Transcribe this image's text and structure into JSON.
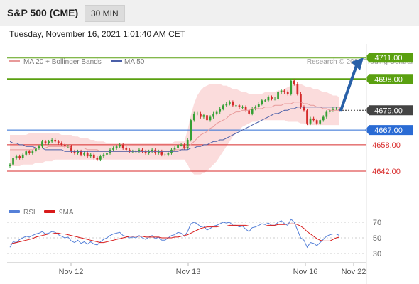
{
  "header": {
    "title": "S&P 500 (CME)",
    "timeframe": "30 MIN"
  },
  "datetime": "Tuesday, November 16, 2021 1:01:40 AM CET",
  "legend": {
    "bollinger": "MA 20 + Bollinger Bands",
    "ma50": "MA 50",
    "credit": "Research © 2021 Trading Central",
    "rsi": "RSI",
    "rsi_ma": "9MA"
  },
  "colors": {
    "bull": "#35a035",
    "bear": "#d42a2a",
    "bollinger_fill": "#fbdcdc",
    "ma20": "#e89a9a",
    "ma50": "#4a5fa8",
    "resistance": "#5aa010",
    "support": "#d82a2a",
    "pivot": "#2a6bd4",
    "current": "#444444",
    "arrow": "#2860a8",
    "rsi": "#5580d8",
    "rsi_ma": "#d81a1a"
  },
  "chart_data": [
    {
      "type": "candlestick",
      "xlabels": [
        "Nov 12",
        "Nov 13",
        "Nov 16",
        "Nov 22"
      ],
      "ylim": [
        4626,
        4718
      ],
      "levels": [
        {
          "label": "4711.00",
          "value": 4711,
          "kind": "resistance"
        },
        {
          "label": "4698.00",
          "value": 4698,
          "kind": "resistance"
        },
        {
          "label": "4679.00",
          "value": 4679,
          "kind": "current"
        },
        {
          "label": "4667.00",
          "value": 4667,
          "kind": "pivot"
        },
        {
          "label": "4658.00",
          "value": 4658,
          "kind": "support"
        },
        {
          "label": "4642.00",
          "value": 4642,
          "kind": "support"
        }
      ],
      "close": [
        4646,
        4650,
        4651,
        4650,
        4652,
        4654,
        4653,
        4654,
        4656,
        4657,
        4660,
        4659,
        4660,
        4661,
        4660,
        4659,
        4658,
        4657,
        4657,
        4654,
        4653,
        4654,
        4652,
        4653,
        4651,
        4652,
        4650,
        4649,
        4651,
        4652,
        4653,
        4655,
        4656,
        4657,
        4658,
        4656,
        4655,
        4654,
        4654,
        4654,
        4655,
        4654,
        4653,
        4654,
        4655,
        4653,
        4654,
        4652,
        4652,
        4653,
        4655,
        4656,
        4658,
        4658,
        4656,
        4661,
        4673,
        4677,
        4677,
        4675,
        4676,
        4673,
        4675,
        4677,
        4678,
        4680,
        4682,
        4683,
        4684,
        4682,
        4682,
        4681,
        4681,
        4679,
        4677,
        4680,
        4681,
        4683,
        4685,
        4685,
        4687,
        4686,
        4686,
        4690,
        4691,
        4690,
        4689,
        4697,
        4695,
        4689,
        4681,
        4679,
        4671,
        4674,
        4673,
        4671,
        4673,
        4675,
        4678,
        4679,
        4680,
        4680,
        4679
      ],
      "ma20": [
        4655,
        4655,
        4655,
        4655,
        4655,
        4655,
        4655,
        4655,
        4656,
        4656,
        4656,
        4656,
        4657,
        4657,
        4657,
        4657,
        4657,
        4657,
        4657,
        4656,
        4656,
        4656,
        4656,
        4656,
        4655,
        4655,
        4655,
        4655,
        4654,
        4654,
        4654,
        4654,
        4654,
        4654,
        4654,
        4654,
        4654,
        4654,
        4654,
        4654,
        4654,
        4654,
        4654,
        4654,
        4654,
        4654,
        4654,
        4654,
        4654,
        4654,
        4654,
        4655,
        4655,
        4655,
        4656,
        4657,
        4658,
        4660,
        4662,
        4664,
        4665,
        4666,
        4668,
        4669,
        4671,
        4672,
        4673,
        4674,
        4676,
        4677,
        4678,
        4678,
        4679,
        4679,
        4679,
        4680,
        4680,
        4680,
        4680,
        4681,
        4681,
        4681,
        4682,
        4682,
        4682,
        4683,
        4683,
        4683,
        4684,
        4684,
        4684,
        4683,
        4683,
        4682,
        4682,
        4681,
        4681,
        4680,
        4680,
        4679,
        4679,
        4679,
        4679
      ],
      "bb_upper": [
        4664,
        4664,
        4664,
        4664,
        4664,
        4664,
        4665,
        4665,
        4665,
        4665,
        4665,
        4665,
        4665,
        4665,
        4665,
        4665,
        4664,
        4664,
        4664,
        4664,
        4663,
        4663,
        4662,
        4662,
        4662,
        4661,
        4661,
        4660,
        4660,
        4660,
        4659,
        4659,
        4659,
        4659,
        4659,
        4659,
        4659,
        4659,
        4659,
        4659,
        4659,
        4659,
        4659,
        4659,
        4659,
        4659,
        4659,
        4659,
        4659,
        4659,
        4659,
        4660,
        4660,
        4660,
        4660,
        4667,
        4676,
        4683,
        4688,
        4691,
        4693,
        4694,
        4695,
        4695,
        4695,
        4695,
        4694,
        4694,
        4693,
        4692,
        4692,
        4691,
        4690,
        4690,
        4689,
        4689,
        4689,
        4689,
        4689,
        4690,
        4690,
        4690,
        4690,
        4691,
        4691,
        4692,
        4693,
        4694,
        4695,
        4695,
        4695,
        4694,
        4693,
        4693,
        4692,
        4692,
        4691,
        4690,
        4690,
        4689,
        4688,
        4688,
        4687
      ],
      "bb_lower": [
        4645,
        4645,
        4645,
        4645,
        4646,
        4646,
        4646,
        4646,
        4647,
        4647,
        4647,
        4648,
        4648,
        4648,
        4649,
        4649,
        4649,
        4649,
        4649,
        4649,
        4649,
        4649,
        4649,
        4649,
        4649,
        4649,
        4649,
        4649,
        4649,
        4649,
        4649,
        4649,
        4649,
        4649,
        4649,
        4649,
        4649,
        4649,
        4649,
        4649,
        4649,
        4649,
        4649,
        4649,
        4649,
        4649,
        4649,
        4649,
        4649,
        4649,
        4649,
        4649,
        4649,
        4649,
        4649,
        4646,
        4642,
        4640,
        4640,
        4640,
        4641,
        4642,
        4644,
        4646,
        4648,
        4651,
        4654,
        4657,
        4660,
        4663,
        4665,
        4667,
        4669,
        4670,
        4671,
        4672,
        4672,
        4673,
        4673,
        4673,
        4673,
        4673,
        4673,
        4673,
        4673,
        4673,
        4672,
        4672,
        4672,
        4672,
        4671,
        4671,
        4670,
        4670,
        4670,
        4670,
        4670,
        4670,
        4670,
        4670,
        4670,
        4670,
        4670
      ],
      "ma50": [
        4660,
        4659,
        4659,
        4658,
        4658,
        4657,
        4657,
        4657,
        4656,
        4656,
        4656,
        4655,
        4655,
        4655,
        4655,
        4655,
        4655,
        4654,
        4654,
        4654,
        4654,
        4654,
        4654,
        4654,
        4654,
        4654,
        4654,
        4654,
        4654,
        4654,
        4654,
        4654,
        4654,
        4654,
        4654,
        4654,
        4654,
        4654,
        4654,
        4654,
        4654,
        4654,
        4654,
        4654,
        4654,
        4654,
        4654,
        4654,
        4654,
        4654,
        4654,
        4654,
        4654,
        4655,
        4655,
        4655,
        4656,
        4656,
        4657,
        4657,
        4658,
        4658,
        4659,
        4660,
        4660,
        4661,
        4661,
        4662,
        4663,
        4664,
        4665,
        4666,
        4667,
        4668,
        4669,
        4670,
        4671,
        4672,
        4673,
        4674,
        4675,
        4676,
        4677,
        4677,
        4678,
        4679,
        4679,
        4680,
        4680,
        4681,
        4681,
        4681,
        4681,
        4681,
        4681,
        4681,
        4681,
        4681,
        4681,
        4681,
        4681,
        4681,
        4681
      ]
    },
    {
      "type": "line",
      "ylim": [
        20,
        80
      ],
      "yticks": [
        70,
        50,
        30
      ],
      "series": [
        {
          "name": "RSI",
          "values": [
            38,
            45,
            44,
            48,
            50,
            52,
            51,
            53,
            55,
            56,
            58,
            55,
            56,
            58,
            57,
            54,
            52,
            50,
            51,
            46,
            44,
            47,
            43,
            45,
            42,
            45,
            42,
            41,
            45,
            48,
            50,
            53,
            55,
            56,
            57,
            53,
            52,
            50,
            51,
            50,
            53,
            50,
            48,
            51,
            53,
            49,
            51,
            47,
            47,
            50,
            53,
            54,
            57,
            56,
            52,
            58,
            68,
            70,
            68,
            64,
            65,
            60,
            62,
            65,
            66,
            68,
            70,
            69,
            70,
            66,
            66,
            64,
            65,
            61,
            58,
            63,
            64,
            66,
            68,
            67,
            69,
            66,
            66,
            70,
            72,
            68,
            66,
            74,
            70,
            60,
            50,
            47,
            38,
            44,
            43,
            40,
            44,
            48,
            52,
            54,
            55,
            55,
            53
          ]
        },
        {
          "name": "9MA",
          "values": [
            42,
            43,
            44,
            45,
            46,
            47,
            48,
            49,
            51,
            52,
            53,
            54,
            55,
            55,
            56,
            56,
            55,
            55,
            54,
            53,
            52,
            51,
            50,
            49,
            48,
            47,
            46,
            45,
            44,
            44,
            45,
            46,
            47,
            48,
            49,
            50,
            51,
            52,
            52,
            52,
            52,
            52,
            51,
            51,
            51,
            51,
            51,
            50,
            50,
            50,
            50,
            51,
            51,
            52,
            53,
            54,
            56,
            58,
            60,
            62,
            63,
            64,
            64,
            64,
            64,
            65,
            65,
            65,
            66,
            66,
            66,
            66,
            66,
            66,
            65,
            65,
            65,
            65,
            65,
            65,
            66,
            66,
            66,
            67,
            67,
            67,
            68,
            68,
            68,
            67,
            65,
            62,
            58,
            55,
            52,
            49,
            47,
            46,
            46,
            46,
            48,
            50,
            51
          ]
        }
      ]
    }
  ]
}
